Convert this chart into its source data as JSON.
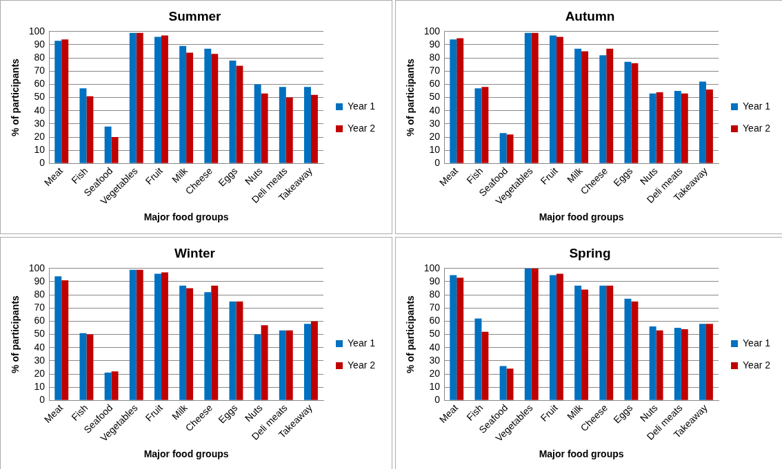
{
  "chart_data": [
    {
      "type": "bar",
      "title": "Summer",
      "xlabel": "Major food groups",
      "ylabel": "% of participants",
      "categories": [
        "Meat",
        "Fish",
        "Seafood",
        "Vegetables",
        "Fruit",
        "Milk",
        "Cheese",
        "Eggs",
        "Nuts",
        "Deli meats",
        "Takeaway"
      ],
      "ylim": [
        0,
        100
      ],
      "yticks": [
        0,
        10,
        20,
        30,
        40,
        50,
        60,
        70,
        80,
        90,
        100
      ],
      "grid": "y",
      "legend": "right",
      "series": [
        {
          "name": "Year 1",
          "color": "#0070c0",
          "values": [
            93,
            57,
            28,
            99,
            96,
            89,
            87,
            78,
            60,
            58,
            58
          ]
        },
        {
          "name": "Year 2",
          "color": "#c00000",
          "values": [
            94,
            51,
            20,
            99,
            97,
            84,
            83,
            74,
            53,
            50,
            52
          ]
        }
      ]
    },
    {
      "type": "bar",
      "title": "Autumn",
      "xlabel": "Major food groups",
      "ylabel": "% of participants",
      "categories": [
        "Meat",
        "Fish",
        "Seafood",
        "Vegetables",
        "Fruit",
        "Milk",
        "Cheese",
        "Eggs",
        "Nuts",
        "Deli meats",
        "Takeaway"
      ],
      "ylim": [
        0,
        100
      ],
      "yticks": [
        0,
        10,
        20,
        30,
        40,
        50,
        60,
        70,
        80,
        90,
        100
      ],
      "grid": "y",
      "legend": "right",
      "series": [
        {
          "name": "Year 1",
          "color": "#0070c0",
          "values": [
            94,
            57,
            23,
            99,
            97,
            87,
            82,
            77,
            53,
            55,
            62
          ]
        },
        {
          "name": "Year 2",
          "color": "#c00000",
          "values": [
            95,
            58,
            22,
            99,
            96,
            85,
            87,
            76,
            54,
            53,
            56
          ]
        }
      ]
    },
    {
      "type": "bar",
      "title": "Winter",
      "xlabel": "Major food groups",
      "ylabel": "% of participants",
      "categories": [
        "Meat",
        "Fish",
        "Seafood",
        "Vegetables",
        "Fruit",
        "Milk",
        "Cheese",
        "Eggs",
        "Nuts",
        "Deli meats",
        "Takeaway"
      ],
      "ylim": [
        0,
        100
      ],
      "yticks": [
        0,
        10,
        20,
        30,
        40,
        50,
        60,
        70,
        80,
        90,
        100
      ],
      "grid": "y",
      "legend": "right",
      "series": [
        {
          "name": "Year 1",
          "color": "#0070c0",
          "values": [
            94,
            51,
            21,
            99,
            96,
            87,
            82,
            75,
            50,
            53,
            58
          ]
        },
        {
          "name": "Year 2",
          "color": "#c00000",
          "values": [
            91,
            50,
            22,
            99,
            97,
            85,
            87,
            75,
            57,
            53,
            60
          ]
        }
      ]
    },
    {
      "type": "bar",
      "title": "Spring",
      "xlabel": "Major food groups",
      "ylabel": "% of participants",
      "categories": [
        "Meat",
        "Fish",
        "Seafood",
        "Vegetables",
        "Fruit",
        "Milk",
        "Cheese",
        "Eggs",
        "Nuts",
        "Deli meats",
        "Takeaway"
      ],
      "ylim": [
        0,
        100
      ],
      "yticks": [
        0,
        10,
        20,
        30,
        40,
        50,
        60,
        70,
        80,
        90,
        100
      ],
      "grid": "y",
      "legend": "right",
      "series": [
        {
          "name": "Year 1",
          "color": "#0070c0",
          "values": [
            95,
            62,
            26,
            100,
            95,
            87,
            87,
            77,
            56,
            55,
            58
          ]
        },
        {
          "name": "Year 2",
          "color": "#c00000",
          "values": [
            93,
            52,
            24,
            100,
            96,
            84,
            87,
            75,
            53,
            54,
            58
          ]
        }
      ]
    }
  ]
}
